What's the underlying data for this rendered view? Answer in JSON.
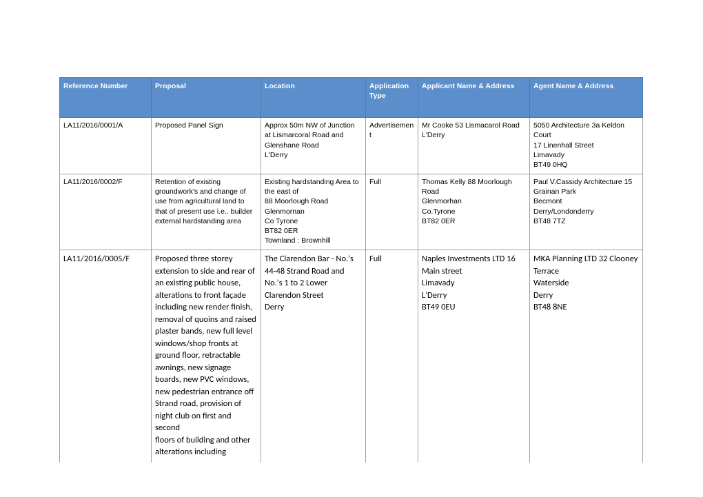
{
  "table": {
    "header_bg": "#5b8ecb",
    "header_fg": "#ffffff",
    "border_color": "#a0a0a0",
    "columns": [
      {
        "label": "Reference Number"
      },
      {
        "label": "Proposal"
      },
      {
        "label": "Location"
      },
      {
        "label": "Application Type"
      },
      {
        "label": "Applicant Name & Address"
      },
      {
        "label": "Agent Name & Address"
      }
    ],
    "rows": [
      {
        "style": "small",
        "ref": "LA11/2016/0001/A",
        "proposal": "Proposed Panel Sign",
        "location_lines": [
          "Approx 50m NW of Junction at Lismarcoral Road and Glenshane Road",
          " L'Derry"
        ],
        "apptype": "Advertisement",
        "applicant_lines": [
          "Mr Cooke   53 Lismacarol Road",
          " L'Derry"
        ],
        "agent_lines": [
          "5050 Architecture 3a Keldon Court",
          " 17 Linenhall Street",
          " Limavady",
          " BT49 0HQ"
        ]
      },
      {
        "style": "small",
        "ref": "LA11/2016/0002/F",
        "proposal": "Retention of existing groundwork's and change of use from agricultural land to that of present use i.e.. builder external hardstanding area",
        "location_lines": [
          "Existing hardstanding Area to the east of",
          "88 Moorlough Road",
          "Glenmornan",
          "Co Tyrone",
          "BT82 0ER",
          "Townland : Brownhill"
        ],
        "apptype": "Full",
        "applicant_lines": [
          "Thomas Kelly    88 Moorlough Road",
          " Glenmorhan",
          " Co.Tyrone",
          " BT82 0ER"
        ],
        "agent_lines": [
          "Paul V.Cassidy Architecture 15 Grainan Park",
          " Becmont",
          " Derry/Londonderry",
          " BT48 7TZ"
        ]
      },
      {
        "style": "large",
        "ref": "LA11/2016/0005/F",
        "proposal": "Proposed three storey extension to side and rear of an existing public house, alterations to front façade including new render finish, removal of quoins and raised plaster bands, new full level windows/shop fronts at ground floor, retractable awnings, new signage boards, new PVC windows, new pedestrian entrance off Strand road, provision of night club on first and second\nfloors of building and other alterations including",
        "location_lines": [
          "The Clarendon Bar - No.'s 44-48 Strand Road and No.'s 1 to 2 Lower Clarendon Street",
          " Derry"
        ],
        "apptype": "Full",
        "applicant_lines": [
          "Naples Investments LTD 16 Main street",
          " Limavady",
          " L'Derry",
          " BT49 0EU"
        ],
        "agent_lines": [
          "MKA Planning LTD 32 Clooney Terrace",
          " Waterside",
          " Derry",
          " BT48 8NE"
        ]
      }
    ]
  }
}
